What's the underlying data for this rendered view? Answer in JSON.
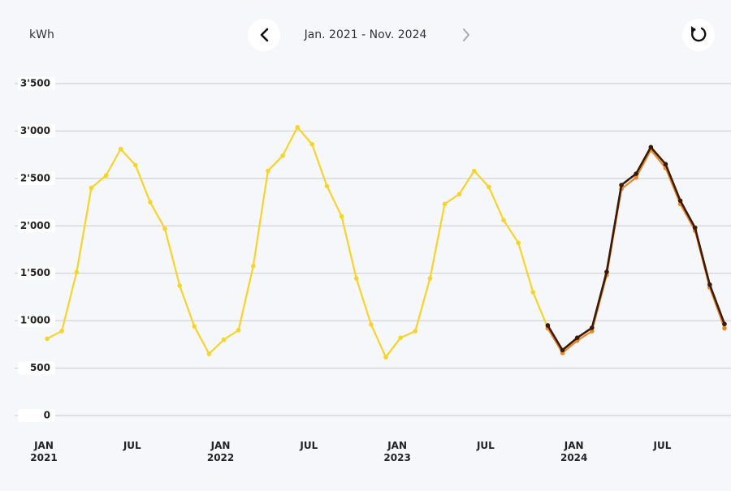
{
  "chart_data": {
    "type": "line",
    "title": "Jan. 2021 - Nov. 2024",
    "ylabel": "kWh",
    "categories": [
      "JAN 2021",
      null,
      null,
      null,
      null,
      null,
      "JUL",
      null,
      null,
      null,
      null,
      null,
      "JAN 2022",
      null,
      null,
      null,
      null,
      null,
      "JUL",
      null,
      null,
      null,
      null,
      null,
      "JAN 2023",
      null,
      null,
      null,
      null,
      null,
      "JUL",
      null,
      null,
      null,
      null,
      null,
      "JAN 2024",
      null,
      null,
      null,
      null,
      null,
      "JUL",
      null,
      null,
      null,
      null
    ],
    "series": [
      {
        "color": "#f6d32d",
        "values": [
          810,
          890,
          1510,
          2400,
          2530,
          2810,
          2640,
          2250,
          1970,
          1370,
          940,
          650,
          800,
          900,
          1575,
          2580,
          2740,
          3040,
          2860,
          2420,
          2100,
          1445,
          960,
          615,
          820,
          890,
          1445,
          2230,
          2335,
          2580,
          2410,
          2060,
          1820,
          1300,
          925,
          null,
          null,
          null,
          null,
          null,
          null,
          null,
          null,
          null,
          null,
          null,
          null
        ]
      },
      {
        "color": "#e8872a",
        "values": [
          null,
          null,
          null,
          null,
          null,
          null,
          null,
          null,
          null,
          null,
          null,
          null,
          null,
          null,
          null,
          null,
          null,
          null,
          null,
          null,
          null,
          null,
          null,
          null,
          null,
          null,
          null,
          null,
          null,
          null,
          null,
          null,
          null,
          null,
          920,
          660,
          790,
          890,
          1480,
          2390,
          2510,
          2800,
          2610,
          2230,
          1950,
          1350,
          920
        ]
      },
      {
        "color": "#3a1a08",
        "values": [
          null,
          null,
          null,
          null,
          null,
          null,
          null,
          null,
          null,
          null,
          null,
          null,
          null,
          null,
          null,
          null,
          null,
          null,
          null,
          null,
          null,
          null,
          null,
          null,
          null,
          null,
          null,
          null,
          null,
          null,
          null,
          null,
          null,
          null,
          950,
          690,
          820,
          925,
          1515,
          2430,
          2550,
          2830,
          2650,
          2265,
          1980,
          1380,
          965
        ]
      }
    ],
    "ylim": [
      0,
      3500
    ],
    "yticks": [
      0,
      500,
      {
        "value": 1000,
        "label": "1'000"
      },
      {
        "value": 1500,
        "label": "1'500"
      },
      {
        "value": 2000,
        "label": "2'000"
      },
      {
        "value": 2500,
        "label": "2'500"
      },
      {
        "value": 3000,
        "label": "3'000"
      },
      {
        "value": 3500,
        "label": "3'500"
      }
    ],
    "grid": true
  }
}
